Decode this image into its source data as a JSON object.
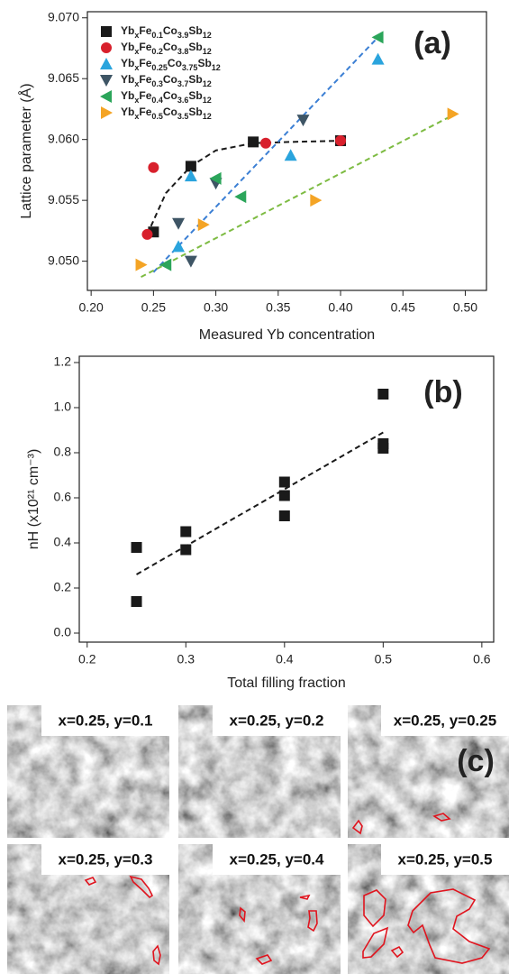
{
  "chart_data": [
    {
      "type": "scatter",
      "annotation": "(a)",
      "xlabel": "Measured Yb concentration",
      "ylabel": "Lattice parameter (Å)",
      "xlim": [
        0.197,
        0.517
      ],
      "ylim": [
        9.0476,
        9.0705
      ],
      "xticks": [
        {
          "value": 0.2,
          "label": "0.20"
        },
        0.25,
        {
          "value": 0.3,
          "label": "0.30"
        },
        0.35,
        {
          "value": 0.4,
          "label": "0.40"
        },
        0.45,
        {
          "value": 0.5,
          "label": "0.50"
        }
      ],
      "yticks": [
        {
          "value": 9.05,
          "label": "9.050"
        },
        9.055,
        {
          "value": 9.06,
          "label": "9.060"
        },
        9.065,
        {
          "value": 9.07,
          "label": "9.070"
        }
      ],
      "legend": "upper left",
      "series": [
        {
          "name": "YbxFe0.1Co3.9Sb12",
          "color": "#1a1a1a",
          "marker": "square",
          "x": [
            0.25,
            0.28,
            0.33,
            0.4
          ],
          "values": [
            9.0524,
            9.0578,
            9.0598,
            9.0599
          ]
        },
        {
          "name": "YbxFe0.2Co3.8Sb12",
          "color": "#d8202c",
          "marker": "circle",
          "x": [
            0.245,
            0.25,
            0.34,
            0.4
          ],
          "values": [
            9.0522,
            9.0577,
            9.0597,
            9.0599
          ]
        },
        {
          "name": "YbxFe0.25Co3.75Sb12",
          "color": "#2aa4dd",
          "marker": "triangle-up",
          "x": [
            0.27,
            0.28,
            0.36,
            0.43
          ],
          "values": [
            9.0512,
            9.057,
            9.0587,
            9.0666
          ]
        },
        {
          "name": "YbxFe0.3Co3.7Sb12",
          "color": "#3e5565",
          "marker": "triangle-down",
          "x": [
            0.27,
            0.28,
            0.3,
            0.37
          ],
          "values": [
            9.0531,
            9.05,
            9.0564,
            9.0616
          ]
        },
        {
          "name": "YbxFe0.4Co3.6Sb12",
          "color": "#2ba55a",
          "marker": "triangle-left",
          "x": [
            0.26,
            0.3,
            0.32,
            0.43
          ],
          "values": [
            9.0497,
            9.0568,
            9.0553,
            9.0684
          ]
        },
        {
          "name": "YbxFe0.5Co3.5Sb12",
          "color": "#f4a425",
          "marker": "triangle-right",
          "x": [
            0.24,
            0.29,
            0.38,
            0.49
          ],
          "values": [
            9.0497,
            9.053,
            9.055,
            9.0621
          ]
        }
      ],
      "trend_lines": [
        {
          "color": "#1a1a1a",
          "x": [
            0.245,
            0.26,
            0.28,
            0.3,
            0.33,
            0.36,
            0.4
          ],
          "values": [
            9.0522,
            9.0556,
            9.0578,
            9.0591,
            9.0597,
            9.0598,
            9.0599
          ]
        },
        {
          "color": "#3b7fd4",
          "x": [
            0.25,
            0.43
          ],
          "values": [
            9.0491,
            9.0684
          ]
        },
        {
          "color": "#7dbb42",
          "x": [
            0.24,
            0.49
          ],
          "values": [
            9.0487,
            9.062
          ]
        }
      ]
    },
    {
      "type": "scatter",
      "annotation": "(b)",
      "xlabel": "Total filling fraction",
      "ylabel": "nH (x10²¹ cm⁻³)",
      "xlim": [
        0.192,
        0.612
      ],
      "ylim": [
        -0.04,
        1.228
      ],
      "xticks": [
        0.2,
        0.3,
        0.4,
        0.5,
        0.6
      ],
      "yticks": [
        {
          "value": 0,
          "label": "0.0"
        },
        0.2,
        0.4,
        0.6,
        0.8,
        {
          "value": 1,
          "label": "1.0"
        },
        1.2
      ],
      "series": [
        {
          "color": "#1a1a1a",
          "marker": "square",
          "x": [
            0.25,
            0.25,
            0.3,
            0.3,
            0.4,
            0.4,
            0.4,
            0.5,
            0.5,
            0.5
          ],
          "values": [
            0.38,
            0.14,
            0.45,
            0.37,
            0.67,
            0.61,
            0.52,
            1.06,
            0.84,
            0.82
          ]
        }
      ],
      "trend_lines": [
        {
          "color": "#1a1a1a",
          "x": [
            0.25,
            0.5
          ],
          "values": [
            0.26,
            0.89
          ]
        }
      ]
    }
  ],
  "micrographs": {
    "annotation": "(c)",
    "images": [
      {
        "label": "x=0.25, y=0.1"
      },
      {
        "label": "x=0.25, y=0.2"
      },
      {
        "label": "x=0.25, y=0.25"
      },
      {
        "label": "x=0.25, y=0.3"
      },
      {
        "label": "x=0.25, y=0.4"
      },
      {
        "label": "x=0.25, y=0.5"
      }
    ]
  }
}
